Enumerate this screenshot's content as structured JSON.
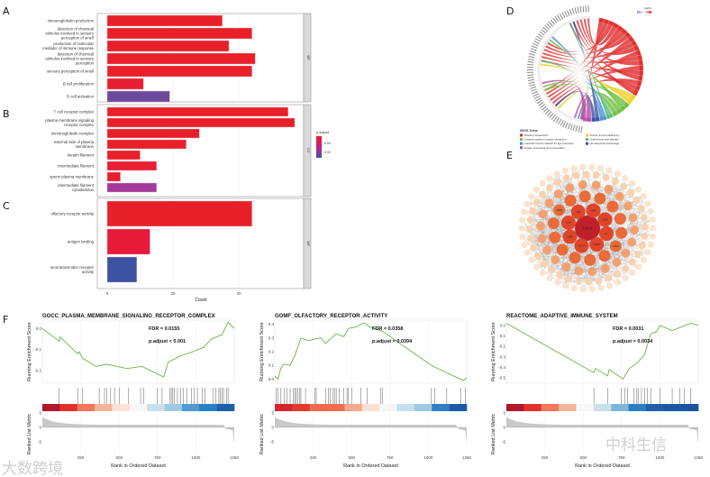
{
  "panel_labels": {
    "a": "A",
    "b": "B",
    "c": "C",
    "d": "D",
    "e": "E",
    "f": "F"
  },
  "chart_data": [
    {
      "type": "bar",
      "orientation": "horizontal",
      "xlabel": "Count",
      "xticks": [
        0,
        20,
        40
      ],
      "xlim": [
        0,
        60
      ],
      "legend_title": "p.adjust",
      "legend_ticks": [
        "0.04",
        "0.02"
      ],
      "facets": [
        {
          "name": "BP",
          "panel": "A",
          "bars": [
            {
              "label": [
                "immunoglobulin production"
              ],
              "value": 35,
              "color": "#e8202a"
            },
            {
              "label": [
                "detection of chemical",
                "stimulus involved in sensory",
                "perception of smell"
              ],
              "value": 44,
              "color": "#e8202a"
            },
            {
              "label": [
                "production of molecular",
                "mediator of immune response"
              ],
              "value": 37,
              "color": "#e8202a"
            },
            {
              "label": [
                "detection of chemical",
                "stimulus involved in sensory",
                "perception"
              ],
              "value": 45,
              "color": "#e8202a"
            },
            {
              "label": [
                "sensory perception of smell"
              ],
              "value": 44,
              "color": "#e8202a"
            },
            {
              "label": [
                "B cell proliferation"
              ],
              "value": 11,
              "color": "#e81e33"
            },
            {
              "label": [
                "B cell activation"
              ],
              "value": 19,
              "color": "#6b4a9e"
            }
          ]
        },
        {
          "name": "CC",
          "panel": "B",
          "bars": [
            {
              "label": [
                "T cell receptor complex"
              ],
              "value": 55,
              "color": "#e8202a"
            },
            {
              "label": [
                "plasma membrane signaling",
                "receptor complex"
              ],
              "value": 57,
              "color": "#e8202a"
            },
            {
              "label": [
                "immunoglobulin complex"
              ],
              "value": 28,
              "color": "#e8202a"
            },
            {
              "label": [
                "external side of plasma",
                "membrane"
              ],
              "value": 24,
              "color": "#e8202a"
            },
            {
              "label": [
                "keratin filament"
              ],
              "value": 10,
              "color": "#e8202a"
            },
            {
              "label": [
                "intermediate filament"
              ],
              "value": 15,
              "color": "#e81e33"
            },
            {
              "label": [
                "sperm plasma membrane"
              ],
              "value": 4,
              "color": "#e81e33"
            },
            {
              "label": [
                "intermediate filament",
                "cytoskeleton"
              ],
              "value": 15,
              "color": "#a43a9c"
            }
          ]
        },
        {
          "name": "MF",
          "panel": "C",
          "bars": [
            {
              "label": [
                "olfactory receptor activity"
              ],
              "value": 44,
              "color": "#e8202a"
            },
            {
              "label": [
                "antigen binding"
              ],
              "value": 13,
              "color": "#e81a3a"
            },
            {
              "label": [
                "neurotransmitter receptor",
                "activity"
              ],
              "value": 9,
              "color": "#3a52a0"
            }
          ]
        }
      ]
    },
    {
      "type": "chord",
      "panel": "D",
      "legend_title": "KEGG Terms",
      "scale_title": "logFC",
      "terms": [
        {
          "name": "Olfactory transduction",
          "color": "#e02a2a",
          "share": 0.62
        },
        {
          "name": "Primary immunodeficiency",
          "color": "#f0d020",
          "share": 0.06
        },
        {
          "name": "Cytokine-cytokine receptor interaction",
          "color": "#6cbf3e",
          "share": 0.12
        },
        {
          "name": "Graft-versus-host disease",
          "color": "#58b878",
          "share": 0.04
        },
        {
          "name": "Intestinal immune network for IgA production",
          "color": "#3d8fd0",
          "share": 0.04
        },
        {
          "name": "Hematopoietic cell lineage",
          "color": "#3b4fa6",
          "share": 0.05
        },
        {
          "name": "Antigen processing and presentation",
          "color": "#b54aa6",
          "share": 0.07
        }
      ]
    },
    {
      "type": "network",
      "panel": "E",
      "hub": "CD19",
      "inner_labels": [
        "IL2",
        "IL2RB",
        "CD79A",
        "CD3E",
        "IL7R",
        "CD4",
        "CD8A",
        "CD28",
        "IL2RA",
        "CD3D",
        "CD19"
      ]
    },
    {
      "type": "gsea",
      "panel": "F",
      "plots": [
        {
          "title": "GOCC_PLASMA_MEMBRANE_SIGNALING_RECEPTOR_COMPLEX",
          "fdr": "FDR = 0.0155",
          "padj": "p.adjust < 0.001",
          "ylim": [
            -0.26,
            0.04
          ],
          "yticks": [
            0.0,
            -0.1,
            -0.2
          ],
          "es": [
            [
              0,
              0
            ],
            [
              110,
              -0.06
            ],
            [
              115,
              -0.04
            ],
            [
              230,
              -0.12
            ],
            [
              240,
              -0.11
            ],
            [
              260,
              -0.14
            ],
            [
              350,
              -0.18
            ],
            [
              420,
              -0.17
            ],
            [
              550,
              -0.19
            ],
            [
              650,
              -0.18
            ],
            [
              760,
              -0.22
            ],
            [
              790,
              -0.23
            ],
            [
              820,
              -0.16
            ],
            [
              900,
              -0.13
            ],
            [
              980,
              -0.11
            ],
            [
              1050,
              -0.09
            ],
            [
              1100,
              -0.05
            ],
            [
              1170,
              -0.03
            ],
            [
              1210,
              0.03
            ],
            [
              1250,
              0.0
            ]
          ],
          "hits": [
            110,
            230,
            260,
            370,
            405,
            420,
            445,
            470,
            500,
            560,
            640,
            660,
            750,
            780,
            830,
            840,
            850,
            860,
            880,
            900,
            920,
            940,
            970,
            990,
            1010,
            1040,
            1060,
            1110,
            1130,
            1150,
            1160,
            1170,
            1180,
            1200,
            1210
          ],
          "colorbar": [
            "#b2182b",
            "#e2302d",
            "#f4775c",
            "#f6b49a",
            "#fde3d6",
            "#f7f7f7",
            "#c8e0ee",
            "#9ecbe3",
            "#4f9bd3",
            "#2a7fc4",
            "#1a5fa8"
          ]
        },
        {
          "title": "GOMF_OLFACTORY_RECEPTOR_ACTIVITY",
          "fdr": "FDR = 0.0358",
          "padj": "p.adjust = 0.0394",
          "ylim": [
            -0.03,
            0.43
          ],
          "yticks": [
            0.4,
            0.3,
            0.2,
            0.1,
            0.0
          ],
          "es": [
            [
              0,
              0.02
            ],
            [
              20,
              0.0
            ],
            [
              40,
              0.08
            ],
            [
              60,
              0.11
            ],
            [
              100,
              0.1
            ],
            [
              130,
              0.17
            ],
            [
              170,
              0.3
            ],
            [
              220,
              0.28
            ],
            [
              250,
              0.29
            ],
            [
              300,
              0.3
            ],
            [
              330,
              0.26
            ],
            [
              400,
              0.33
            ],
            [
              450,
              0.31
            ],
            [
              480,
              0.37
            ],
            [
              530,
              0.38
            ],
            [
              580,
              0.41
            ],
            [
              620,
              0.38
            ],
            [
              700,
              0.35
            ],
            [
              1020,
              0.1
            ],
            [
              1130,
              0.04
            ],
            [
              1230,
              -0.01
            ],
            [
              1250,
              0.01
            ]
          ],
          "hits": [
            10,
            20,
            40,
            60,
            80,
            100,
            120,
            130,
            140,
            150,
            160,
            170,
            200,
            260,
            270,
            330,
            350,
            360,
            380,
            390,
            400,
            420,
            450,
            470,
            480,
            500,
            560,
            600,
            690,
            700,
            1020,
            1040,
            1120,
            1210,
            1240
          ],
          "colorbar": [
            "#d7262b",
            "#e33a30",
            "#ef6a4e",
            "#f06c4f",
            "#f7a98c",
            "#fde0d2",
            "#f4f6fa",
            "#c6dff0",
            "#9ecae2",
            "#2f7fc1",
            "#1d5aa5"
          ]
        },
        {
          "title": "REACTOME_ADAPTIVE_IMMUNE_SYSTEM",
          "fdr": "FDR = 0.0031",
          "padj": "p.adjust = 0.0034",
          "ylim": [
            -0.55,
            0.05
          ],
          "yticks": [
            0.0,
            -0.1,
            -0.2,
            -0.3,
            -0.4,
            -0.5
          ],
          "es": [
            [
              0,
              0.02
            ],
            [
              570,
              -0.45
            ],
            [
              580,
              -0.41
            ],
            [
              660,
              -0.48
            ],
            [
              670,
              -0.42
            ],
            [
              760,
              -0.51
            ],
            [
              800,
              -0.41
            ],
            [
              850,
              -0.36
            ],
            [
              900,
              -0.28
            ],
            [
              940,
              -0.08
            ],
            [
              980,
              -0.06
            ],
            [
              1000,
              0.0
            ],
            [
              1080,
              -0.05
            ],
            [
              1130,
              -0.02
            ],
            [
              1200,
              0.02
            ],
            [
              1250,
              0.0
            ]
          ],
          "hits": [
            570,
            660,
            750,
            770,
            790,
            830,
            850,
            860,
            880,
            900,
            920,
            940,
            1000,
            1080,
            1130,
            1160,
            1200
          ],
          "colorbar": [
            "#b2182b",
            "#e2302d",
            "#f4775c",
            "#f6b49a",
            "#f7f7f7",
            "#c8e0ee",
            "#7fb5dc",
            "#2c7fc1",
            "#1d5fa8",
            "#1b58a2",
            "#1a55a0"
          ]
        }
      ],
      "ylabel_es": "Running Enrichment Score",
      "ylabel_metric": "Ranked List Metric",
      "xlabel": "Rank in Ordered Dataset",
      "xticks": [
        250,
        500,
        750,
        1000,
        1250
      ],
      "metric_ticks": [
        5,
        0,
        -5
      ]
    }
  ],
  "watermarks": {
    "left": "大数跨境",
    "right": "中科生信"
  }
}
